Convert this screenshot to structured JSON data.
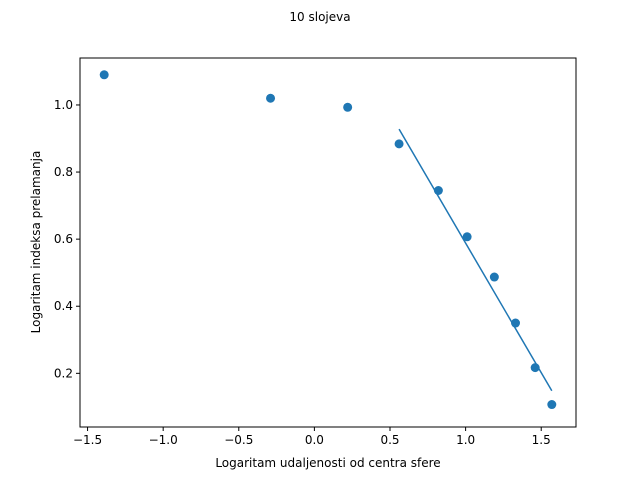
{
  "chart_data": {
    "type": "scatter",
    "title": "10 slojeva",
    "xlabel": "Logaritam udaljenosti od centra sfere",
    "ylabel": "Logaritam indeksa prelamanja",
    "xlim": [
      -1.55,
      1.73
    ],
    "ylim": [
      0.04,
      1.14
    ],
    "xticks": [
      -1.5,
      -1.0,
      -0.5,
      0.0,
      0.5,
      1.0,
      1.5
    ],
    "xtick_labels": [
      "−1.5",
      "−1.0",
      "−0.5",
      "0.0",
      "0.5",
      "1.0",
      "1.5"
    ],
    "yticks": [
      0.2,
      0.4,
      0.6,
      0.8,
      1.0
    ],
    "ytick_labels": [
      "0.2",
      "0.4",
      "0.6",
      "0.8",
      "1.0"
    ],
    "grid": false,
    "marker_color": "#1f77b4",
    "line_color": "#1f77b4",
    "points": {
      "x": [
        -1.39,
        -0.29,
        0.22,
        0.56,
        0.82,
        1.01,
        1.19,
        1.33,
        1.46,
        1.57
      ],
      "y": [
        1.09,
        1.02,
        0.993,
        0.884,
        0.745,
        0.607,
        0.487,
        0.35,
        0.217,
        0.107
      ]
    },
    "fit_line": {
      "x": [
        0.56,
        1.57
      ],
      "y": [
        0.928,
        0.148
      ]
    }
  }
}
